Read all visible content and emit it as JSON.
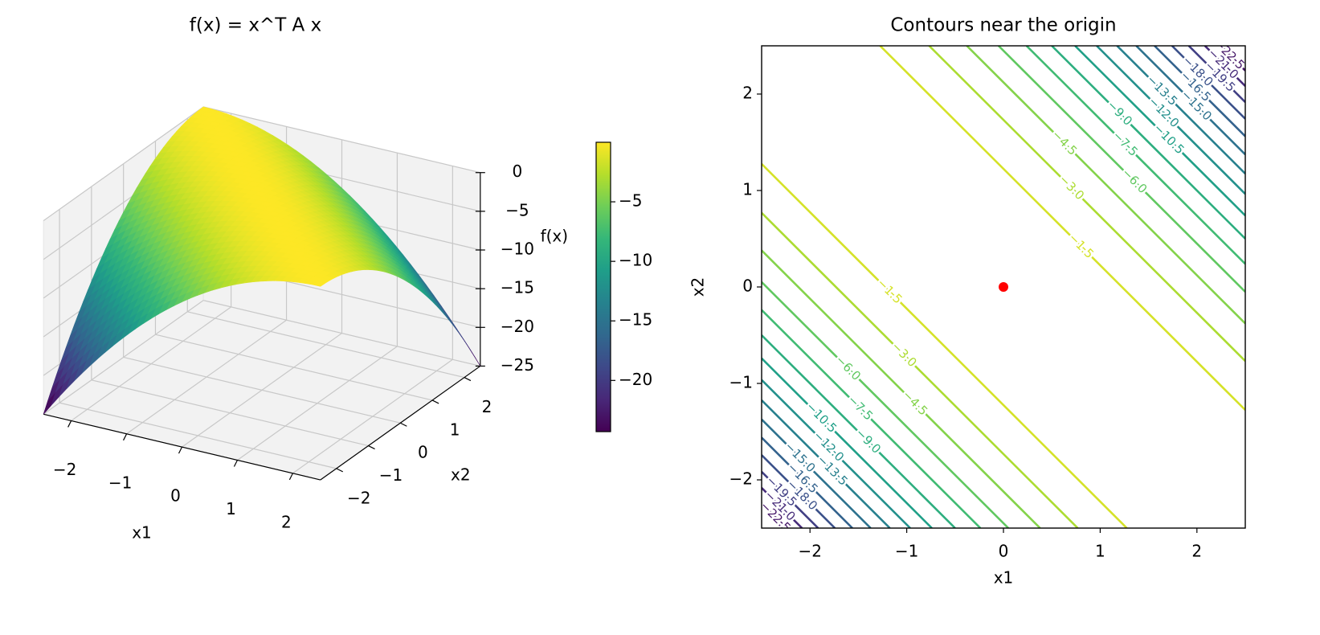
{
  "chart_data": [
    {
      "type": "surface3d",
      "title": "f(x) = x^T A x",
      "xlabel": "x1",
      "ylabel": "x2",
      "zlabel": "f(x)",
      "colormap": "viridis",
      "xlim": [
        -2.5,
        2.5
      ],
      "ylim": [
        -2.5,
        2.5
      ],
      "zlim": [
        -25,
        0
      ],
      "xticks": [
        {
          "value": -2,
          "label": "−2"
        },
        {
          "value": -1,
          "label": "−1"
        },
        0,
        1,
        2
      ],
      "yticks": [
        {
          "value": -2,
          "label": "−2"
        },
        {
          "value": -1,
          "label": "−1"
        },
        0,
        1,
        2
      ],
      "zticks": [
        0,
        {
          "value": -5,
          "label": "−5"
        },
        {
          "value": -10,
          "label": "−10"
        },
        {
          "value": -15,
          "label": "−15"
        },
        {
          "value": -20,
          "label": "−20"
        },
        {
          "value": -25,
          "label": "−25"
        }
      ],
      "colorbar": {
        "clim": [
          -24.3,
          0
        ],
        "ticks": [
          {
            "value": -5,
            "label": "−5"
          },
          {
            "value": -10,
            "label": "−10"
          },
          {
            "value": -15,
            "label": "−15"
          },
          {
            "value": -20,
            "label": "−20"
          }
        ]
      }
    },
    {
      "type": "contour",
      "title": "Contours near the origin",
      "xlabel": "x1",
      "ylabel": "x2",
      "colormap": "viridis",
      "clim": [
        -24,
        0
      ],
      "xlim": [
        -2.5,
        2.5
      ],
      "ylim": [
        -2.5,
        2.5
      ],
      "xticks": [
        {
          "value": -2,
          "label": "−2"
        },
        {
          "value": -1,
          "label": "−1"
        },
        0,
        1,
        2
      ],
      "yticks": [
        {
          "value": -2,
          "label": "−2"
        },
        {
          "value": -1,
          "label": "−1"
        },
        0,
        1,
        2
      ],
      "levels": [
        {
          "value": -22.5,
          "label": "−22.5"
        },
        {
          "value": -21,
          "label": "−21.0"
        },
        {
          "value": -19.5,
          "label": "−19.5"
        },
        {
          "value": -18,
          "label": "−18.0"
        },
        {
          "value": -16.5,
          "label": "−16.5"
        },
        {
          "value": -15,
          "label": "−15.0"
        },
        {
          "value": -13.5,
          "label": "−13.5"
        },
        {
          "value": -12,
          "label": "−12.0"
        },
        {
          "value": -10.5,
          "label": "−10.5"
        },
        {
          "value": -9,
          "label": "−9.0"
        },
        {
          "value": -7.5,
          "label": "−7.5"
        },
        {
          "value": -6,
          "label": "−6.0"
        },
        {
          "value": -4.5,
          "label": "−4.5"
        },
        {
          "value": -3,
          "label": "−3.0"
        },
        {
          "value": -1.5,
          "label": "−1.5"
        }
      ],
      "points": {
        "x": [
          0
        ],
        "y": [
          0
        ],
        "color": "red"
      }
    }
  ]
}
